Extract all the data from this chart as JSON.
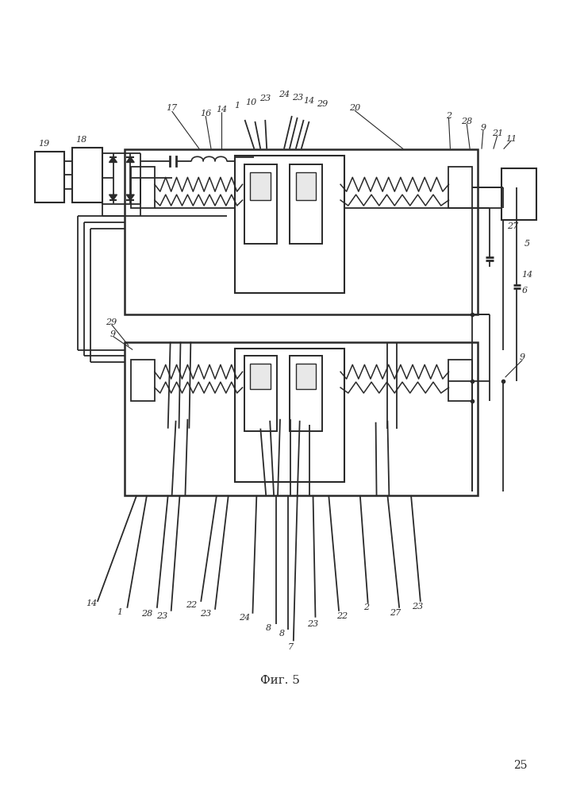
{
  "caption": "Фиг. 5",
  "page_number": "25",
  "background": "#ffffff",
  "line_color": "#2a2a2a",
  "fig_width": 7.07,
  "fig_height": 10.0
}
